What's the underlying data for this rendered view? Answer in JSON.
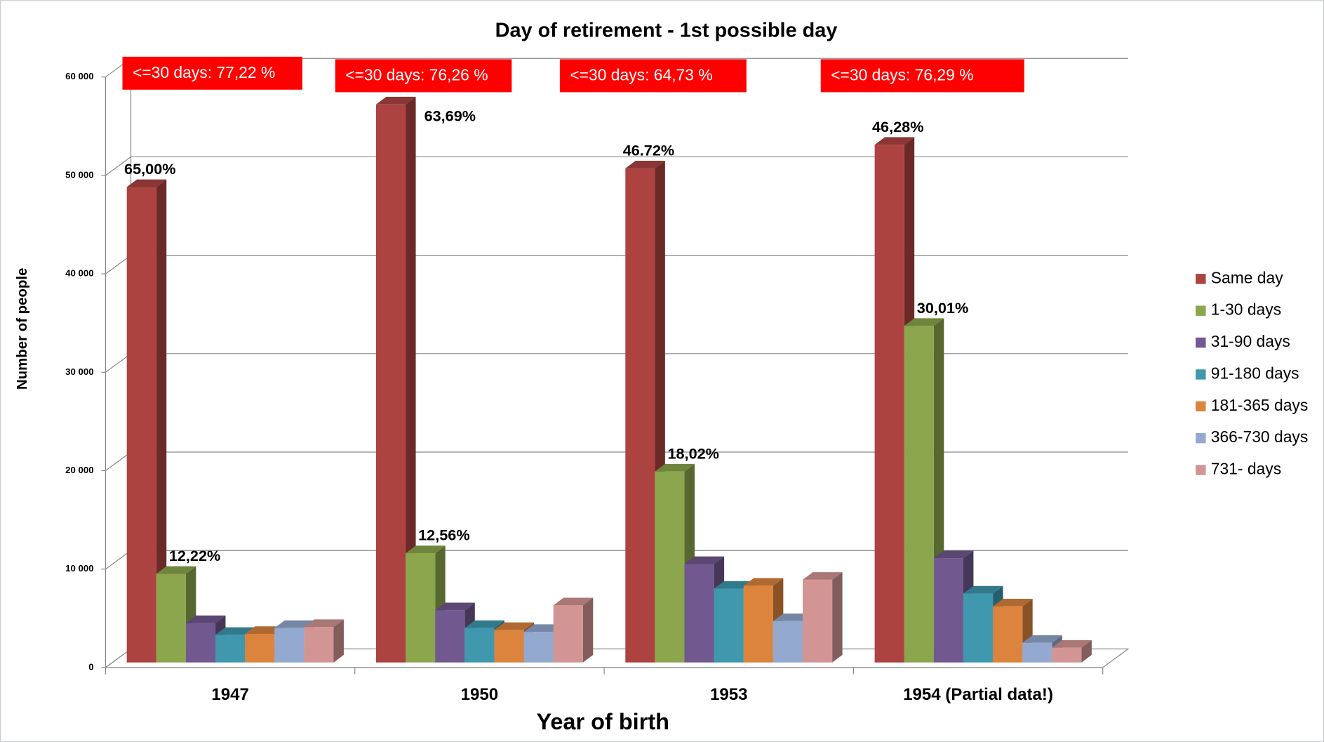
{
  "chart_data": {
    "type": "bar3d",
    "title": "Day of retirement - 1st possible day",
    "xlabel": "Year of birth",
    "ylabel": "Number of people",
    "categories": [
      "1947",
      "1950",
      "1953",
      "1954 (Partial data!)"
    ],
    "ylim": [
      0,
      60000
    ],
    "yticks": [
      {
        "value": 0,
        "label": "0"
      },
      {
        "value": 10000,
        "label": "10 000"
      },
      {
        "value": 20000,
        "label": "20 000"
      },
      {
        "value": 30000,
        "label": "30 000"
      },
      {
        "value": 40000,
        "label": "40 000"
      },
      {
        "value": 50000,
        "label": "50 000"
      },
      {
        "value": 60000,
        "label": "60 000"
      }
    ],
    "grid": true,
    "legend": "right",
    "series": [
      {
        "name": "Same day",
        "color": "#ad4341",
        "values": [
          48300,
          56700,
          50200,
          52600
        ]
      },
      {
        "name": "1-30 days",
        "color": "#8ba64c",
        "values": [
          9000,
          11100,
          19400,
          34200
        ]
      },
      {
        "name": "31-90 days",
        "color": "#715990",
        "values": [
          4000,
          5300,
          10000,
          10600
        ]
      },
      {
        "name": "91-180 days",
        "color": "#3f98ae",
        "values": [
          2800,
          3500,
          7500,
          7000
        ]
      },
      {
        "name": "181-365 days",
        "color": "#dc843d",
        "values": [
          2900,
          3300,
          7800,
          5700
        ]
      },
      {
        "name": "366-730 days",
        "color": "#94a9d0",
        "values": [
          3500,
          3100,
          4200,
          2000
        ]
      },
      {
        "name": "731- days",
        "color": "#d39594",
        "values": [
          3600,
          5800,
          8400,
          1500
        ]
      }
    ],
    "box_labels": [
      "<=30 days: 77,22 %",
      "<=30 days: 76,26 %",
      "<=30 days: 64,73 %",
      "<=30 days: 76,29 %"
    ],
    "annotations": [
      {
        "text": "65,00%",
        "series": 0,
        "category": 0
      },
      {
        "text": "12,22%",
        "series": 1,
        "category": 0
      },
      {
        "text": "63,69%",
        "series": 0,
        "category": 1
      },
      {
        "text": "12,56%",
        "series": 1,
        "category": 1
      },
      {
        "text": "46.72%",
        "series": 0,
        "category": 2
      },
      {
        "text": "18,02%",
        "series": 1,
        "category": 2
      },
      {
        "text": "46,28%",
        "series": 0,
        "category": 3
      },
      {
        "text": "30,01%",
        "series": 1,
        "category": 3
      }
    ]
  }
}
